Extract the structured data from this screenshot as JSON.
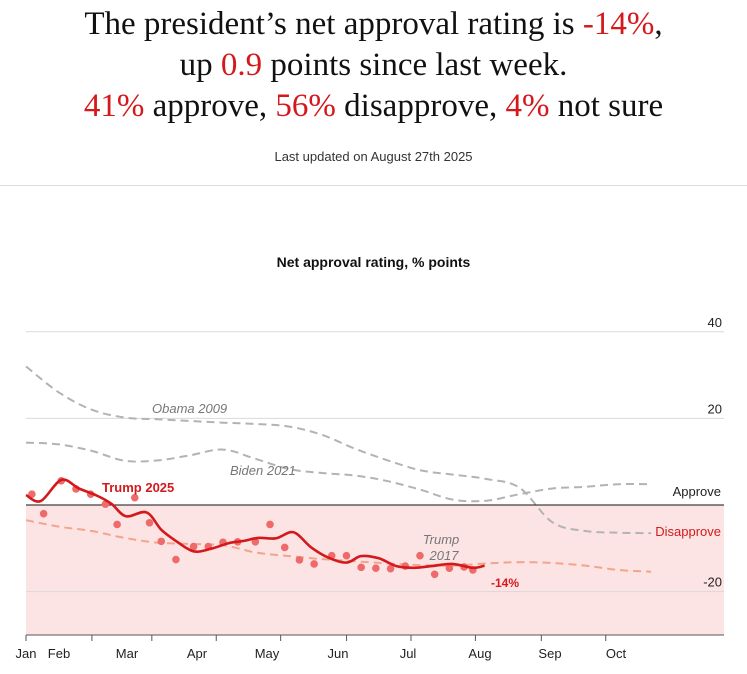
{
  "headline": {
    "line1_pre": "The president’s net approval rating is ",
    "line1_value": "-14%",
    "line1_post": ",",
    "line2_pre": "up ",
    "line2_value": "0.9",
    "line2_post": " points since last week.",
    "approve_value": "41%",
    "approve_text": " approve, ",
    "disapprove_value": "56%",
    "disapprove_text": " disapprove, ",
    "not_sure_value": "4%",
    "not_sure_text": " not sure"
  },
  "updated": "Last updated on August 27th 2025",
  "colors": {
    "accent": "#d4191c",
    "dots": "#ef6a6a",
    "trump2017": "#f2a48c",
    "comparison": "#b3b3b3",
    "disapprove_zone": "#fde4e4"
  },
  "chart_data": {
    "type": "line",
    "title": "Net approval rating, % points",
    "x_ticks": [
      "Jan",
      "Feb",
      "Mar",
      "Apr",
      "May",
      "Jun",
      "Jul",
      "Aug",
      "Sep",
      "Oct"
    ],
    "y_ticks": [
      40,
      20,
      -20
    ],
    "ylim": [
      -30,
      40
    ],
    "zone_labels": {
      "above": "Approve",
      "below": "Disapprove"
    },
    "current_label": "-14%",
    "series": [
      {
        "name": "Trump 2025",
        "style": "solid",
        "x": [
          0,
          0.5,
          1.2,
          1.8,
          2.4,
          2.9,
          3.4,
          4.1,
          4.6,
          5.1,
          5.7,
          6.3,
          6.9,
          7.4,
          7.9,
          8.5,
          9.1,
          9.7,
          10.3,
          10.9,
          11.4,
          12.0,
          12.6,
          13.2,
          13.8,
          14.5,
          15.2,
          15.6
        ],
        "y": [
          2.3,
          0.9,
          5.8,
          3.8,
          2.2,
          0.3,
          -2.6,
          -1.7,
          -5.7,
          -8.3,
          -10.7,
          -10.1,
          -8.8,
          -8.3,
          -7.6,
          -7.7,
          -6.3,
          -9.8,
          -12.2,
          -13.3,
          -11.8,
          -12.3,
          -14.1,
          -14.5,
          -14.1,
          -13.6,
          -14.5,
          -14.0
        ]
      },
      {
        "name": "Trump 2025 polls",
        "style": "dots",
        "x": [
          0.2,
          0.6,
          1.2,
          1.7,
          2.2,
          2.7,
          3.1,
          3.7,
          4.2,
          4.6,
          5.1,
          5.7,
          6.2,
          6.7,
          7.2,
          7.8,
          8.3,
          8.8,
          9.3,
          9.8,
          10.4,
          10.9,
          11.4,
          11.9,
          12.4,
          12.9,
          13.4,
          13.9,
          14.4,
          14.9,
          15.2
        ],
        "y": [
          2.5,
          -2.0,
          5.6,
          3.7,
          2.5,
          0.2,
          -4.5,
          1.7,
          -4.1,
          -8.4,
          -12.6,
          -9.6,
          -9.6,
          -8.6,
          -8.5,
          -8.5,
          -4.5,
          -9.8,
          -12.7,
          -13.6,
          -11.7,
          -11.7,
          -14.4,
          -14.6,
          -14.7,
          -14.1,
          -11.7,
          -16.0,
          -14.6,
          -14.3,
          -15.0
        ]
      },
      {
        "name": "Obama 2009",
        "style": "dashed",
        "x": [
          0,
          1,
          2,
          3,
          4,
          5,
          6,
          7,
          8,
          9,
          10,
          11,
          12,
          13,
          14,
          15,
          16,
          17,
          18,
          19
        ],
        "y": [
          32,
          26,
          22,
          20.2,
          19.8,
          19.4,
          19.0,
          18.7,
          18.1,
          16.2,
          13,
          10.3,
          8,
          7,
          6,
          4,
          -4,
          -6,
          -6.4,
          -6.5
        ]
      },
      {
        "name": "Biden 2021",
        "style": "dashed",
        "x": [
          0,
          1,
          2,
          3,
          4,
          5,
          6,
          7,
          8,
          9,
          10,
          11,
          12,
          13,
          14,
          15,
          16,
          17,
          18,
          19
        ],
        "y": [
          14.4,
          14,
          12.5,
          10.2,
          10.3,
          11.5,
          12.8,
          10.6,
          8.3,
          7.4,
          6.8,
          5.5,
          3.5,
          1.2,
          1.0,
          2.5,
          3.8,
          4.2,
          4.8,
          4.8
        ]
      },
      {
        "name": "Trump 2017",
        "style": "dashed",
        "x": [
          0,
          1,
          2,
          3,
          4,
          5,
          6,
          7,
          8,
          9,
          10,
          11,
          12,
          13,
          14,
          15,
          16,
          17,
          18,
          19
        ],
        "y": [
          -3.5,
          -5.0,
          -6.0,
          -7.6,
          -8.7,
          -9.0,
          -9.3,
          -11.0,
          -11.8,
          -12.5,
          -13.0,
          -13.5,
          -13.9,
          -14.0,
          -13.5,
          -13.2,
          -13.4,
          -14,
          -15,
          -15.4
        ]
      }
    ],
    "series_labels": {
      "trump2025": "Trump 2025",
      "obama": "Obama 2009",
      "biden": "Biden 2021",
      "trump2017_line1": "Trump",
      "trump2017_line2": "2017"
    },
    "grid": true,
    "zero_line": true
  }
}
